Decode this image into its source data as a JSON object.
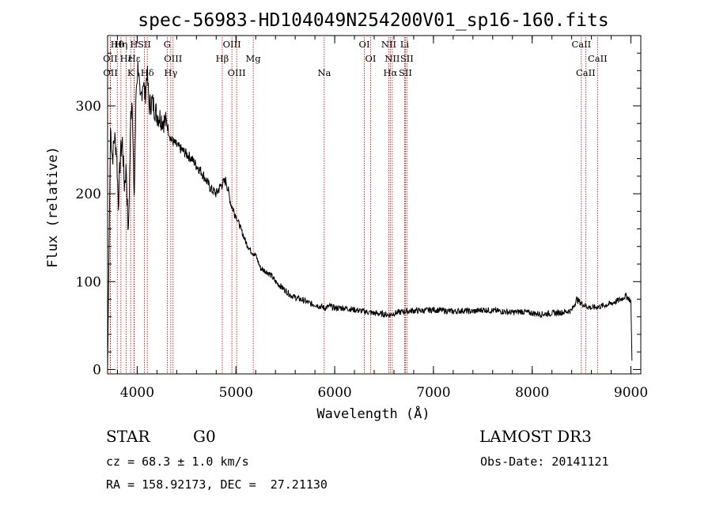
{
  "chart_data": {
    "type": "line",
    "title": "spec-56983-HD104049N254200V01_sp16-160.fits",
    "xlabel": "Wavelength (Å)",
    "ylabel": "Flux (relative)",
    "xlim": [
      3700,
      9100
    ],
    "ylim": [
      -5,
      380
    ],
    "x_ticks": [
      4000,
      5000,
      6000,
      7000,
      8000,
      9000
    ],
    "y_ticks": [
      0,
      100,
      200,
      300
    ],
    "series": [
      {
        "name": "flux",
        "x": [
          3700,
          3730,
          3750,
          3770,
          3790,
          3810,
          3830,
          3850,
          3870,
          3890,
          3910,
          3935,
          3950,
          3968,
          3990,
          4010,
          4030,
          4060,
          4080,
          4100,
          4120,
          4150,
          4200,
          4250,
          4300,
          4340,
          4400,
          4450,
          4500,
          4550,
          4600,
          4650,
          4700,
          4750,
          4800,
          4850,
          4900,
          4950,
          5000,
          5050,
          5100,
          5150,
          5200,
          5250,
          5300,
          5350,
          5400,
          5450,
          5500,
          5550,
          5600,
          5650,
          5700,
          5750,
          5800,
          5850,
          5900,
          5950,
          6000,
          6100,
          6200,
          6300,
          6400,
          6500,
          6563,
          6600,
          6700,
          6800,
          6900,
          7000,
          7100,
          7200,
          7300,
          7400,
          7500,
          7600,
          7700,
          7800,
          7900,
          8000,
          8100,
          8200,
          8300,
          8400,
          8450,
          8500,
          8550,
          8600,
          8700,
          8800,
          8900,
          8950,
          9000,
          9010
        ],
        "y": [
          0,
          275,
          240,
          265,
          250,
          190,
          245,
          260,
          210,
          230,
          150,
          290,
          310,
          185,
          320,
          350,
          300,
          330,
          310,
          340,
          300,
          305,
          290,
          285,
          280,
          262,
          255,
          250,
          245,
          240,
          232,
          225,
          215,
          205,
          200,
          210,
          215,
          188,
          175,
          160,
          145,
          135,
          130,
          115,
          112,
          108,
          100,
          95,
          90,
          85,
          82,
          80,
          78,
          75,
          74,
          72,
          70,
          72,
          70,
          70,
          68,
          66,
          64,
          63,
          62,
          64,
          66,
          67,
          67,
          68,
          67,
          66,
          67,
          66,
          68,
          67,
          66,
          65,
          66,
          64,
          63,
          64,
          65,
          67,
          80,
          75,
          72,
          70,
          72,
          75,
          80,
          84,
          78,
          10
        ]
      }
    ],
    "line_markers": [
      {
        "label": "Hθ",
        "wavelength": 3798
      },
      {
        "label": "OII",
        "wavelength": 3727
      },
      {
        "label": "OII",
        "wavelength": 3729
      },
      {
        "label": "Hη",
        "wavelength": 3835
      },
      {
        "label": "Hε",
        "wavelength": 3889
      },
      {
        "label": "K",
        "wavelength": 3934
      },
      {
        "label": "H",
        "wavelength": 3968
      },
      {
        "label": "Hε",
        "wavelength": 3970
      },
      {
        "label": "Hδ",
        "wavelength": 4102
      },
      {
        "label": "SII",
        "wavelength": 4072
      },
      {
        "label": "OIII",
        "wavelength": 4363
      },
      {
        "label": "Hγ",
        "wavelength": 4340
      },
      {
        "label": "G",
        "wavelength": 4304
      },
      {
        "label": "Hβ",
        "wavelength": 4861
      },
      {
        "label": "OIII",
        "wavelength": 5007
      },
      {
        "label": "OIII",
        "wavelength": 4959
      },
      {
        "label": "Mg",
        "wavelength": 5175
      },
      {
        "label": "Na",
        "wavelength": 5894
      },
      {
        "label": "OI",
        "wavelength": 6300
      },
      {
        "label": "OI",
        "wavelength": 6364
      },
      {
        "label": "Hα",
        "wavelength": 6563
      },
      {
        "label": "NII",
        "wavelength": 6548
      },
      {
        "label": "NII",
        "wavelength": 6583
      },
      {
        "label": "SII",
        "wavelength": 6716
      },
      {
        "label": "Li",
        "wavelength": 6708
      },
      {
        "label": "SII",
        "wavelength": 6731
      },
      {
        "label": "CaII",
        "wavelength": 8542
      },
      {
        "label": "CaII",
        "wavelength": 8498
      },
      {
        "label": "CaII",
        "wavelength": 8662
      }
    ],
    "line_color": "#000000",
    "marker_color": "#c00000"
  },
  "info": {
    "object_class": "STAR",
    "subclass": "G0",
    "survey": "LAMOST DR3",
    "redshift": "cz = 68.3 ± 1.0 km/s",
    "obs_date": "Obs-Date: 20141121",
    "coords": "RA = 158.92173, DEC =  27.21130"
  }
}
